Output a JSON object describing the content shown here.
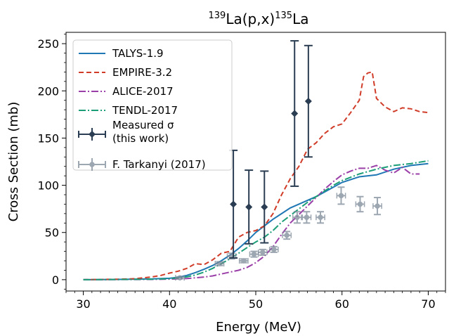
{
  "chart_data": {
    "type": "line",
    "title": {
      "pre_sup": "139",
      "main": "La(p,x)",
      "mid_sup": "135",
      "tail": "La"
    },
    "xlabel": "Energy (MeV)",
    "ylabel": "Cross Section (mb)",
    "xlim": [
      28,
      72
    ],
    "ylim": [
      -12,
      262
    ],
    "xticks": [
      30,
      40,
      50,
      60,
      70
    ],
    "yticks": [
      0,
      50,
      100,
      150,
      200,
      250
    ],
    "grid": false,
    "legend_position": "top-left",
    "series": [
      {
        "name": "TALYS-1.9",
        "style": "solid",
        "color": "#1f77b4",
        "x": [
          30,
          34,
          38,
          40,
          41,
          42,
          43,
          44,
          45,
          46,
          47,
          48,
          49,
          50,
          51,
          52,
          53,
          54,
          55,
          56,
          57,
          58,
          59,
          60,
          62,
          64,
          66,
          68,
          70
        ],
        "y": [
          0,
          0.3,
          0.8,
          1.5,
          2.5,
          4.5,
          7.5,
          11,
          15,
          20,
          26,
          33,
          41,
          50,
          57,
          64,
          70,
          76,
          80,
          84,
          88,
          93,
          98,
          103,
          109,
          111,
          117,
          121,
          123
        ]
      },
      {
        "name": "EMPIRE-3.2",
        "style": "dashed",
        "color": "#d03c28",
        "x": [
          30,
          34,
          36,
          38,
          39,
          40,
          41,
          42,
          43,
          44,
          45,
          46,
          47,
          48,
          49,
          50,
          51,
          52,
          53,
          54,
          55,
          56,
          57,
          58,
          59,
          60,
          61,
          62,
          62.5,
          63,
          63.5,
          64,
          65,
          66,
          67,
          68,
          69,
          70
        ],
        "y": [
          0,
          0.5,
          1,
          3,
          4.5,
          7,
          9,
          12,
          17,
          16,
          21,
          28,
          30,
          45,
          50,
          52,
          57,
          70,
          90,
          107,
          120,
          138,
          145,
          155,
          162,
          165,
          177,
          190,
          215,
          219,
          220,
          192,
          183,
          178,
          182,
          181,
          178,
          177
        ]
      },
      {
        "name": "ALICE-2017",
        "style": "dashdot",
        "color": "#9b3fa8",
        "x": [
          30,
          34,
          38,
          40,
          42,
          44,
          45,
          46,
          47,
          48,
          49,
          50,
          51,
          52,
          53,
          54,
          55,
          56,
          57,
          58,
          59,
          60,
          61,
          62,
          63,
          64,
          65,
          66,
          67,
          68,
          69
        ],
        "y": [
          0,
          0.1,
          0.3,
          0.6,
          1.2,
          2.8,
          4,
          6,
          8,
          10,
          13,
          18,
          25,
          35,
          48,
          60,
          69,
          78,
          87,
          96,
          104,
          111,
          115,
          118,
          118,
          121,
          116,
          113,
          119,
          112,
          112
        ]
      },
      {
        "name": "TENDL-2017",
        "style": "dashdot",
        "color": "#1b9e77",
        "x": [
          30,
          34,
          38,
          40,
          42,
          43,
          44,
          45,
          46,
          47,
          48,
          49,
          50,
          51,
          52,
          53,
          54,
          55,
          56,
          57,
          58,
          59,
          60,
          62,
          64,
          66,
          68,
          70
        ],
        "y": [
          0,
          0.2,
          0.5,
          1,
          3,
          5,
          8,
          12,
          17,
          22,
          28,
          34,
          40,
          45,
          52,
          61,
          68,
          75,
          82,
          88,
          94,
          100,
          105,
          112,
          117,
          121,
          123,
          126
        ]
      }
    ],
    "measurements": [
      {
        "name": "Measured σ",
        "name_line2": "(this work)",
        "color": "#2a3d52",
        "marker": "diamond",
        "points": [
          {
            "x": 47.4,
            "y": 80,
            "yerr": 57
          },
          {
            "x": 49.2,
            "y": 77,
            "yerr": 39
          },
          {
            "x": 51.0,
            "y": 77,
            "yerr": 38
          },
          {
            "x": 54.5,
            "y": 176,
            "yerr": 77
          },
          {
            "x": 56.1,
            "y": 189,
            "yerr": 59
          }
        ]
      },
      {
        "name": "F. Tarkanyi (2017)",
        "color": "#7d8a99",
        "marker": "circle",
        "points": [
          {
            "x": 41.2,
            "y": 2,
            "xerr": 0.5,
            "yerr": 1
          },
          {
            "x": 45.8,
            "y": 17,
            "xerr": 0.5,
            "yerr": 2
          },
          {
            "x": 47.2,
            "y": 25,
            "xerr": 0.5,
            "yerr": 3
          },
          {
            "x": 48.6,
            "y": 20,
            "xerr": 0.5,
            "yerr": 2
          },
          {
            "x": 49.8,
            "y": 27,
            "xerr": 0.5,
            "yerr": 3
          },
          {
            "x": 50.8,
            "y": 29,
            "xerr": 0.5,
            "yerr": 3
          },
          {
            "x": 52.1,
            "y": 32,
            "xerr": 0.5,
            "yerr": 3
          },
          {
            "x": 53.6,
            "y": 47,
            "xerr": 0.5,
            "yerr": 4
          },
          {
            "x": 54.8,
            "y": 66,
            "xerr": 0.5,
            "yerr": 6
          },
          {
            "x": 55.9,
            "y": 66,
            "xerr": 0.5,
            "yerr": 6
          },
          {
            "x": 57.5,
            "y": 66,
            "xerr": 0.5,
            "yerr": 6
          },
          {
            "x": 59.9,
            "y": 89,
            "xerr": 0.5,
            "yerr": 9
          },
          {
            "x": 62.1,
            "y": 80,
            "xerr": 0.5,
            "yerr": 8
          },
          {
            "x": 64.1,
            "y": 78,
            "xerr": 0.5,
            "yerr": 9
          }
        ]
      }
    ]
  }
}
